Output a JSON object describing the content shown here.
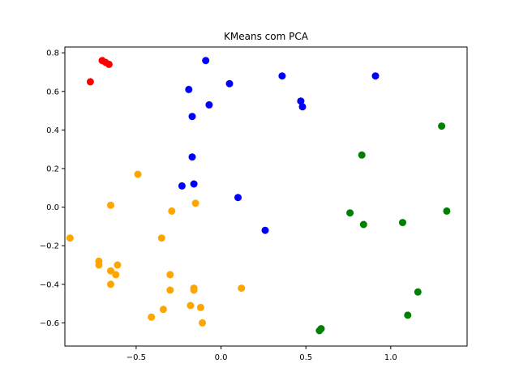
{
  "chart_data": {
    "type": "scatter",
    "title": "KMeans com PCA",
    "xlabel": "",
    "ylabel": "",
    "xlim": [
      -0.92,
      1.45
    ],
    "ylim": [
      -0.72,
      0.83
    ],
    "xticks": [
      -0.5,
      0.0,
      0.5,
      1.0
    ],
    "xtick_labels": [
      "−0.5",
      "0.0",
      "0.5",
      "1.0"
    ],
    "yticks": [
      -0.6,
      -0.4,
      -0.2,
      0.0,
      0.2,
      0.4,
      0.6,
      0.8
    ],
    "ytick_labels": [
      "−0.6",
      "−0.4",
      "−0.2",
      "0.0",
      "0.2",
      "0.4",
      "0.6",
      "0.8"
    ],
    "grid": false,
    "series": [
      {
        "color": "#ff0000",
        "points": [
          {
            "x": -0.7,
            "y": 0.76
          },
          {
            "x": -0.68,
            "y": 0.75
          },
          {
            "x": -0.66,
            "y": 0.74
          },
          {
            "x": -0.77,
            "y": 0.65
          }
        ]
      },
      {
        "color": "#0000ff",
        "points": [
          {
            "x": -0.09,
            "y": 0.76
          },
          {
            "x": 0.36,
            "y": 0.68
          },
          {
            "x": 0.91,
            "y": 0.68
          },
          {
            "x": -0.19,
            "y": 0.61
          },
          {
            "x": 0.05,
            "y": 0.64
          },
          {
            "x": 0.47,
            "y": 0.55
          },
          {
            "x": 0.48,
            "y": 0.52
          },
          {
            "x": -0.07,
            "y": 0.53
          },
          {
            "x": -0.17,
            "y": 0.47
          },
          {
            "x": -0.17,
            "y": 0.26
          },
          {
            "x": -0.23,
            "y": 0.11
          },
          {
            "x": -0.16,
            "y": 0.12
          },
          {
            "x": 0.1,
            "y": 0.05
          },
          {
            "x": 0.26,
            "y": -0.12
          }
        ]
      },
      {
        "color": "#008000",
        "points": [
          {
            "x": 1.3,
            "y": 0.42
          },
          {
            "x": 0.83,
            "y": 0.27
          },
          {
            "x": 0.76,
            "y": -0.03
          },
          {
            "x": 0.84,
            "y": -0.09
          },
          {
            "x": 1.07,
            "y": -0.08
          },
          {
            "x": 1.33,
            "y": -0.02
          },
          {
            "x": 1.16,
            "y": -0.44
          },
          {
            "x": 1.1,
            "y": -0.56
          },
          {
            "x": 0.59,
            "y": -0.63
          },
          {
            "x": 0.58,
            "y": -0.64
          }
        ]
      },
      {
        "color": "#ffa500",
        "points": [
          {
            "x": -0.49,
            "y": 0.17
          },
          {
            "x": -0.65,
            "y": 0.01
          },
          {
            "x": -0.29,
            "y": -0.02
          },
          {
            "x": -0.15,
            "y": 0.02
          },
          {
            "x": -0.89,
            "y": -0.16
          },
          {
            "x": -0.35,
            "y": -0.16
          },
          {
            "x": -0.72,
            "y": -0.28
          },
          {
            "x": -0.72,
            "y": -0.3
          },
          {
            "x": -0.61,
            "y": -0.3
          },
          {
            "x": -0.65,
            "y": -0.33
          },
          {
            "x": -0.62,
            "y": -0.35
          },
          {
            "x": -0.65,
            "y": -0.4
          },
          {
            "x": -0.3,
            "y": -0.35
          },
          {
            "x": -0.3,
            "y": -0.43
          },
          {
            "x": -0.16,
            "y": -0.42
          },
          {
            "x": -0.16,
            "y": -0.43
          },
          {
            "x": 0.12,
            "y": -0.42
          },
          {
            "x": -0.18,
            "y": -0.51
          },
          {
            "x": -0.12,
            "y": -0.52
          },
          {
            "x": -0.34,
            "y": -0.53
          },
          {
            "x": -0.41,
            "y": -0.57
          },
          {
            "x": -0.11,
            "y": -0.6
          }
        ]
      }
    ]
  }
}
